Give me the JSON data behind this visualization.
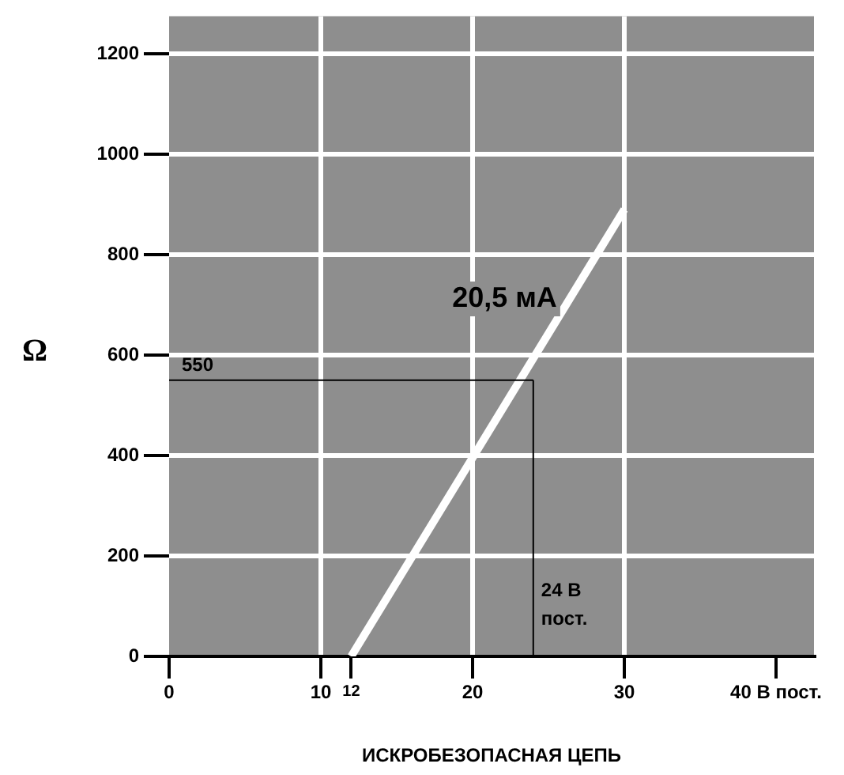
{
  "chart_data": {
    "type": "line",
    "xlabel": "ИСКРОБЕЗОПАСНАЯ ЦЕПЬ",
    "ylabel": "Ω",
    "xlim": [
      0,
      42.5
    ],
    "xticks": [
      0,
      10,
      {
        "value": 12,
        "label": "12"
      },
      20,
      30,
      {
        "value": 40,
        "label": "40 В пост."
      }
    ],
    "ylim": [
      0,
      1275
    ],
    "yticks": [
      0,
      200,
      400,
      600,
      800,
      1000,
      1200
    ],
    "grid": true,
    "marker": "none",
    "line_style": "solid",
    "series": [
      {
        "color": "#ffffff",
        "x": [
          12,
          30
        ],
        "values": [
          0,
          890
        ]
      }
    ],
    "ref_lines": [
      {
        "axis": "y",
        "value": 550,
        "label": "550",
        "color": "#000000"
      },
      {
        "axis": "x",
        "value": 24,
        "label": "24 В пост.",
        "color": "#000000"
      }
    ],
    "annotations": [
      "20,5 мА"
    ]
  }
}
